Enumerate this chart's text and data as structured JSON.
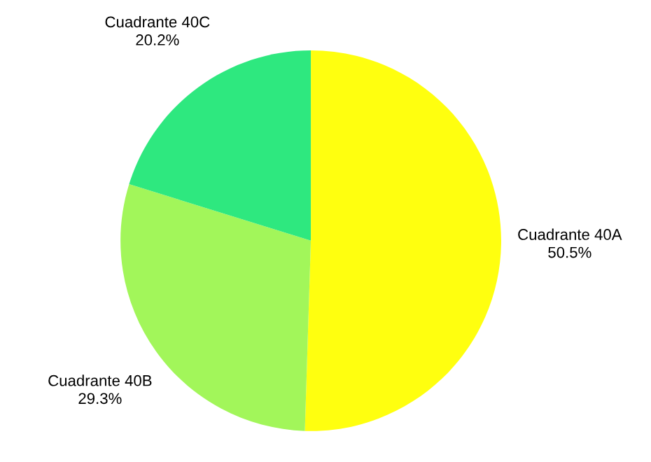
{
  "chart_data": {
    "type": "pie",
    "categories": [
      "Cuadrante 40A",
      "Cuadrante 40B",
      "Cuadrante 40C"
    ],
    "values": [
      50.5,
      29.3,
      20.2
    ],
    "value_labels": [
      "50.5%",
      "29.3%",
      "20.2%"
    ],
    "colors": [
      "#ffff0f",
      "#a2f65a",
      "#2ee87f"
    ],
    "legend": false
  }
}
